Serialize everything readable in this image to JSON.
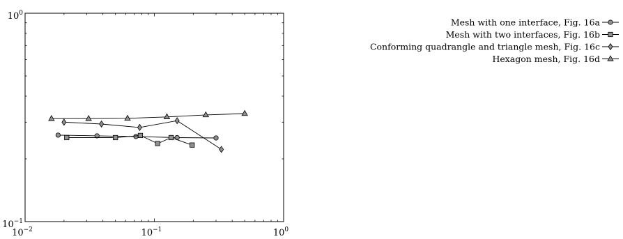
{
  "chart_data": {
    "type": "line",
    "x_scale": "log",
    "y_scale": "log",
    "xlim": [
      0.01,
      1
    ],
    "ylim": [
      0.1,
      1
    ],
    "x_ticks": [
      {
        "value": 0.01,
        "base": "10",
        "exp": "−2"
      },
      {
        "value": 0.1,
        "base": "10",
        "exp": "−1"
      },
      {
        "value": 1,
        "base": "10",
        "exp": "0"
      }
    ],
    "y_ticks": [
      {
        "value": 0.1,
        "base": "10",
        "exp": "−1"
      },
      {
        "value": 1,
        "base": "10",
        "exp": "0"
      }
    ],
    "legend_position": "top-right, outside plot",
    "series": [
      {
        "name": "Mesh with one interface, Fig. 16a",
        "marker": "circle",
        "points": [
          [
            0.018,
            0.26
          ],
          [
            0.036,
            0.258
          ],
          [
            0.072,
            0.256
          ],
          [
            0.15,
            0.253
          ],
          [
            0.3,
            0.252
          ]
        ]
      },
      {
        "name": "Mesh with two interfaces, Fig. 16b",
        "marker": "square",
        "points": [
          [
            0.021,
            0.253
          ],
          [
            0.05,
            0.253
          ],
          [
            0.078,
            0.259
          ],
          [
            0.106,
            0.237
          ],
          [
            0.135,
            0.253
          ],
          [
            0.196,
            0.233
          ]
        ]
      },
      {
        "name": "Conforming quadrangle and triangle mesh, Fig. 16c",
        "marker": "diamond",
        "points": [
          [
            0.02,
            0.3
          ],
          [
            0.039,
            0.294
          ],
          [
            0.077,
            0.283
          ],
          [
            0.15,
            0.305
          ],
          [
            0.33,
            0.222
          ]
        ]
      },
      {
        "name": "Hexagon mesh, Fig. 16d",
        "marker": "triangle",
        "points": [
          [
            0.016,
            0.312
          ],
          [
            0.031,
            0.312
          ],
          [
            0.062,
            0.313
          ],
          [
            0.125,
            0.318
          ],
          [
            0.25,
            0.325
          ],
          [
            0.5,
            0.33
          ]
        ]
      }
    ]
  }
}
